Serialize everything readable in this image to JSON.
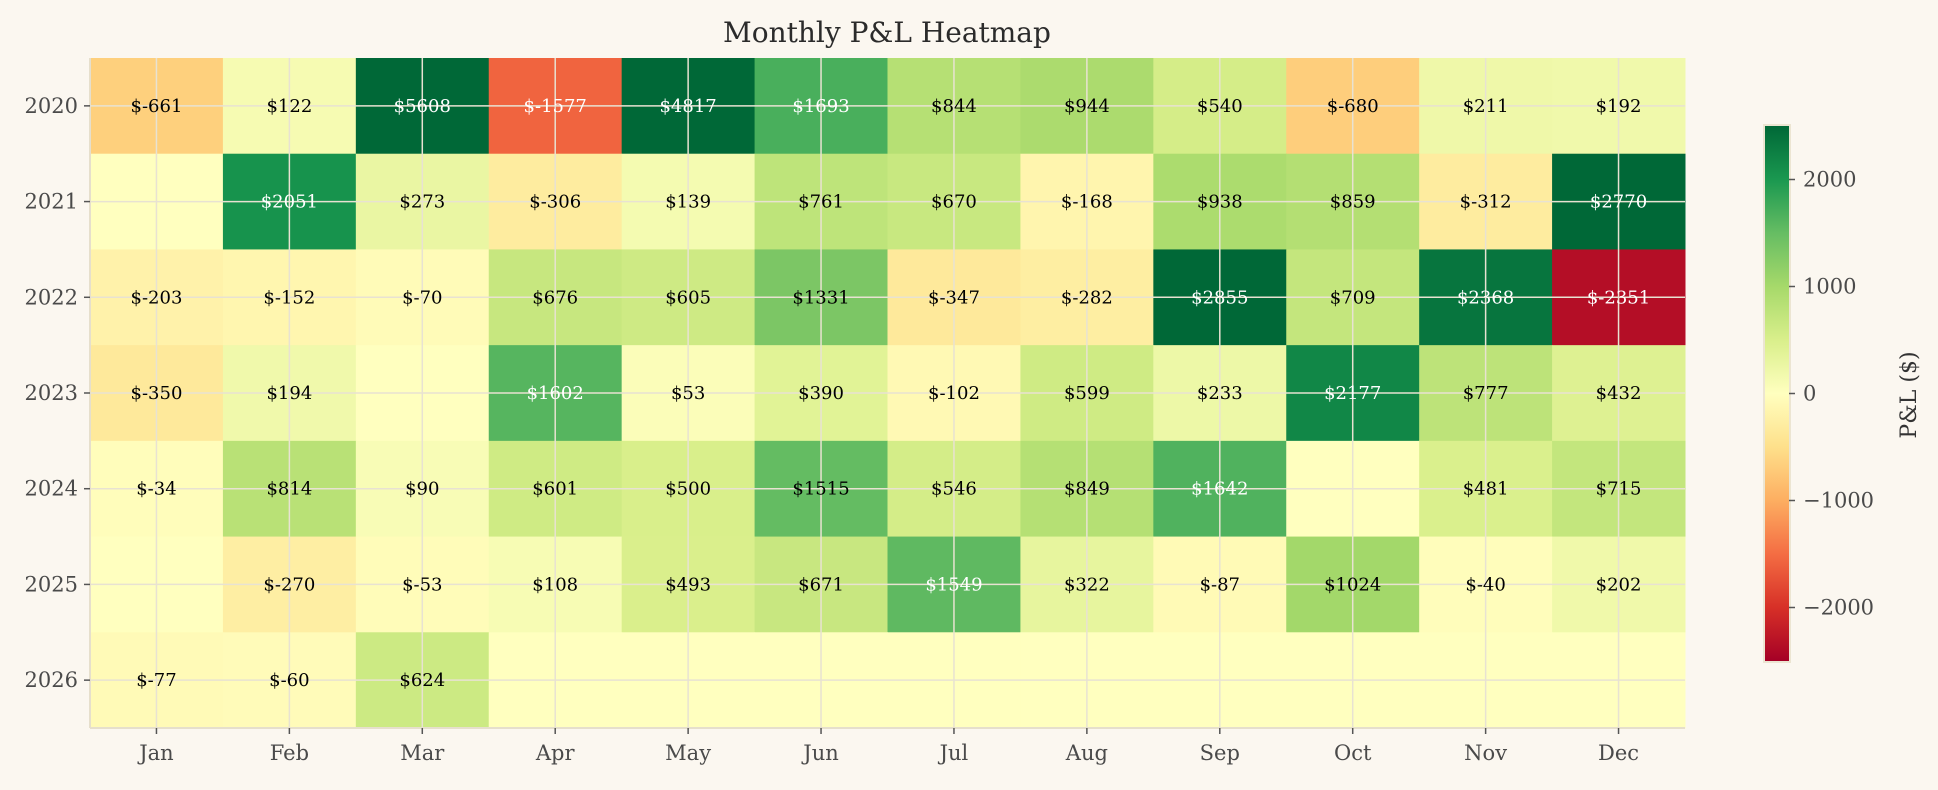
{
  "chart_data": {
    "type": "heatmap",
    "title": "Monthly P&L Heatmap",
    "xlabel": "",
    "ylabel": "",
    "colorbar_label": "P&L ($)",
    "colormap": "RdYlGn",
    "value_prefix": "$",
    "color_range": [
      -2500,
      2500
    ],
    "colorbar_ticks": [
      2000,
      1000,
      0,
      -1000,
      -2000
    ],
    "colorbar_tick_labels": [
      "2000",
      "1000",
      "0",
      "−1000",
      "−2000"
    ],
    "grid": true,
    "x_categories": [
      "Jan",
      "Feb",
      "Mar",
      "Apr",
      "May",
      "Jun",
      "Jul",
      "Aug",
      "Sep",
      "Oct",
      "Nov",
      "Dec"
    ],
    "y_categories": [
      "2020",
      "2021",
      "2022",
      "2023",
      "2024",
      "2025",
      "2026"
    ],
    "values": [
      [
        -661,
        122,
        5608,
        -1577,
        4817,
        1693,
        844,
        944,
        540,
        -680,
        211,
        192
      ],
      [
        null,
        2051,
        273,
        -306,
        139,
        761,
        670,
        -168,
        938,
        859,
        -312,
        2770
      ],
      [
        -203,
        -152,
        -70,
        676,
        605,
        1331,
        -347,
        -282,
        2855,
        709,
        2368,
        -2351
      ],
      [
        -350,
        194,
        null,
        1602,
        53,
        390,
        -102,
        599,
        233,
        2177,
        777,
        432
      ],
      [
        -34,
        814,
        90,
        601,
        500,
        1515,
        546,
        849,
        1642,
        null,
        481,
        715
      ],
      [
        null,
        -270,
        -53,
        108,
        493,
        671,
        1549,
        322,
        -87,
        1024,
        -40,
        202
      ],
      [
        -77,
        -60,
        624,
        null,
        null,
        null,
        null,
        null,
        null,
        null,
        null,
        null
      ]
    ]
  }
}
